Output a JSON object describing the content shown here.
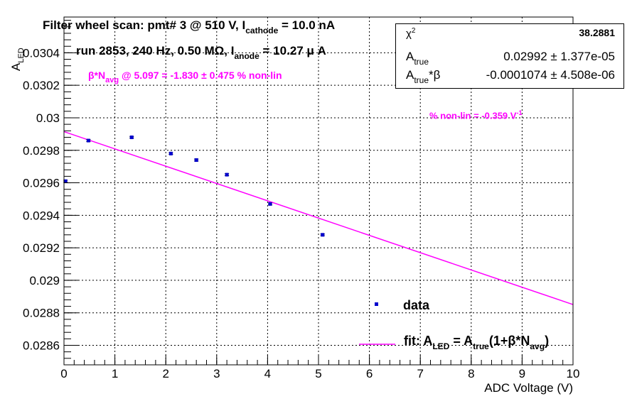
{
  "title": {
    "prefix": "Filter wheel scan: pmt#   3 @   510 V, I",
    "sub": "cathode",
    "suffix": "     = 10.0 nA"
  },
  "run_info": {
    "prefix": "run 2853, 240 Hz, 0.50 MΩ, I",
    "sub": "anode",
    "suffix": " = 10.27 μ A"
  },
  "nonlin_annotation": {
    "prefix": "β*N",
    "sub": "avg",
    "suffix": " @ 5.097 = -1.830 ± 0.475 % non-lin"
  },
  "slope_annotation": {
    "text": "% non-lin = -0.359 V",
    "sup": "-1"
  },
  "stats_box": {
    "chi2_label": "χ",
    "chi2_sup": "2",
    "chi2_value": "38.2881",
    "atrue_label": "A",
    "atrue_sub": "true",
    "atrue_value": "0.02992 ± 1.377e-05",
    "atb_label": "A",
    "atb_sub": "true",
    "atb_suffix": "*β",
    "atb_value": "-0.0001074 ± 4.508e-06"
  },
  "legend": {
    "data_label": "data",
    "fit_prefix": "fit: A",
    "fit_sub1": "LED",
    "fit_mid": " = A",
    "fit_sub2": "true",
    "fit_mid2": "(1+β*N",
    "fit_sub3": "avg",
    "fit_suffix": ")"
  },
  "axes": {
    "xlabel": "ADC Voltage (V)",
    "ylabel_main": "A",
    "ylabel_sub": "LED"
  },
  "colors": {
    "data": "#0000cc",
    "fit": "#ff00ff"
  },
  "chart_data": {
    "type": "scatter",
    "xlim": [
      0,
      10
    ],
    "ylim": [
      0.02848,
      0.03062
    ],
    "x_ticks": [
      0,
      1,
      2,
      3,
      4,
      5,
      6,
      7,
      8,
      9,
      10
    ],
    "y_ticks": [
      0.0286,
      0.0288,
      0.029,
      0.0292,
      0.0294,
      0.0296,
      0.0298,
      0.03,
      0.0302,
      0.0304
    ],
    "y_tick_labels": [
      "0.0286",
      "0.0288",
      "0.029",
      "0.0292",
      "0.0294",
      "0.0296",
      "0.0298",
      "0.03",
      "0.0302",
      "0.0304"
    ],
    "grid": true,
    "series": [
      {
        "name": "data",
        "x": [
          0.03,
          0.48,
          1.33,
          2.1,
          2.6,
          3.2,
          4.05,
          5.08
        ],
        "y": [
          0.02961,
          0.02986,
          0.02988,
          0.02978,
          0.02974,
          0.02965,
          0.02947,
          0.02928
        ],
        "yerr": [
          6e-06,
          6e-06,
          5e-06,
          5e-06,
          6e-06,
          6e-06,
          6e-06,
          5e-06
        ]
      },
      {
        "name": "fit",
        "type": "line",
        "x": [
          0.0,
          10.0
        ],
        "y": [
          0.029915,
          0.028851
        ]
      }
    ]
  }
}
